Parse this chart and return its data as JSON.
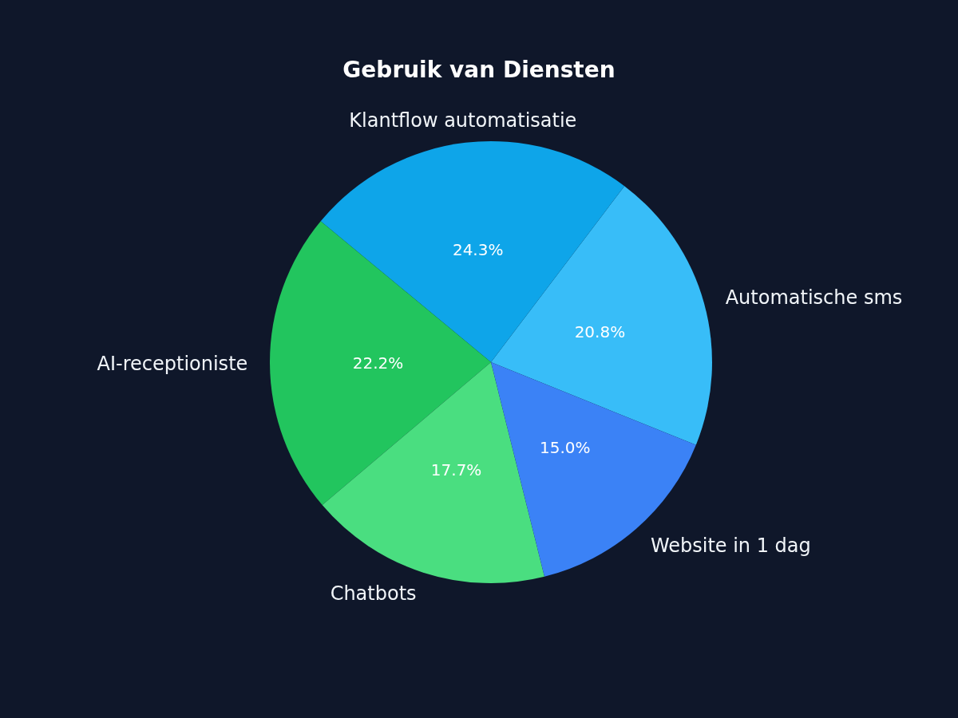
{
  "chart_data": {
    "type": "pie",
    "title": "Gebruik van Diensten",
    "categories": [
      "Automatische sms",
      "Klantflow automatisatie",
      "AI-receptioniste",
      "Chatbots",
      "Website in 1 dag"
    ],
    "values": [
      20.8,
      24.3,
      22.2,
      17.7,
      15.0
    ],
    "colors": [
      "#38bdf8",
      "#0ea5e9",
      "#22c55e",
      "#4ade80",
      "#3b82f6"
    ],
    "value_labels": [
      "20.8%",
      "24.3%",
      "22.2%",
      "17.7%",
      "15.0%"
    ],
    "legend": false
  }
}
